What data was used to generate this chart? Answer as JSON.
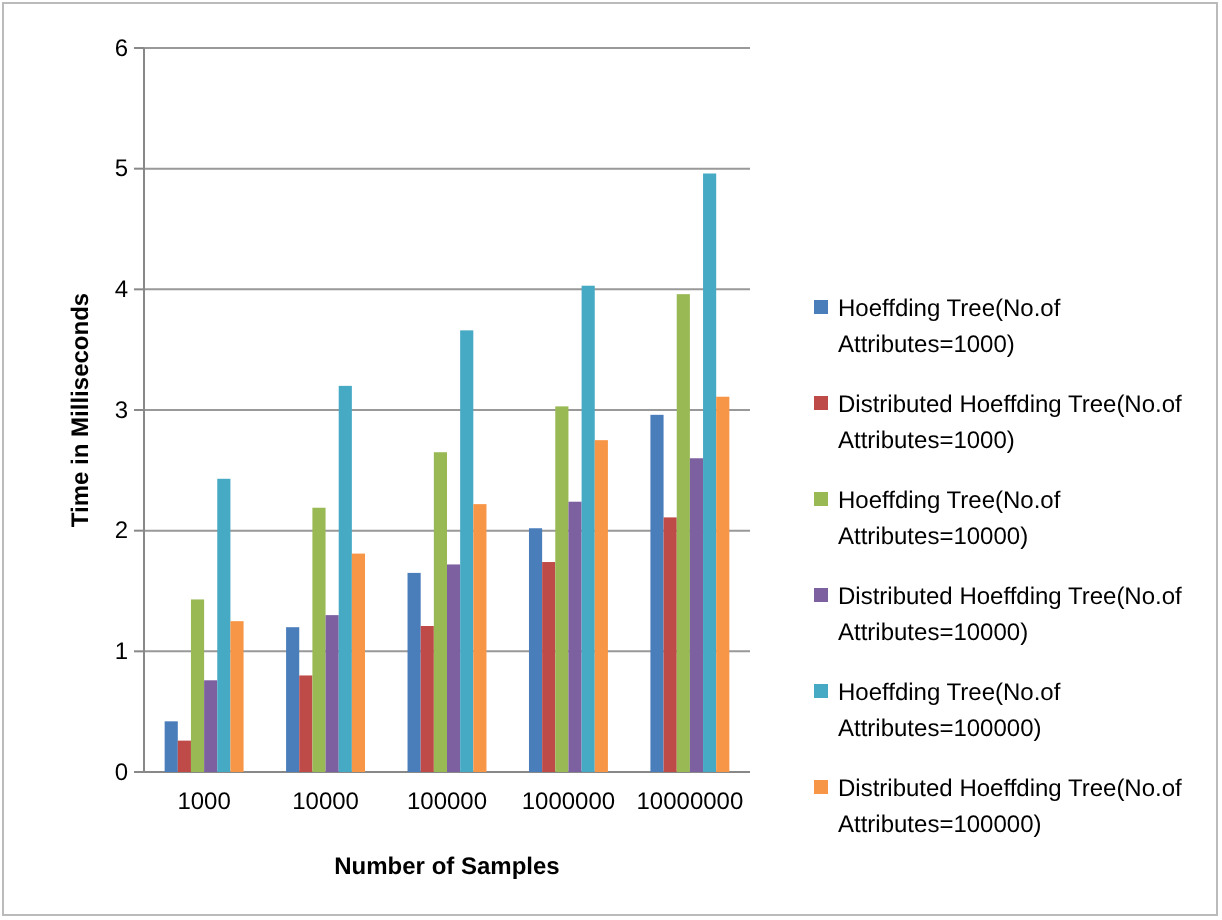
{
  "chart_data": {
    "type": "bar",
    "xlabel": "Number of Samples",
    "ylabel": "Time in Milliseconds",
    "categories": [
      "1000",
      "10000",
      "100000",
      "1000000",
      "10000000"
    ],
    "series": [
      {
        "name": "Hoeffding Tree(No.of Attributes=1000)",
        "color": "#4a7ebb",
        "values": [
          0.42,
          1.2,
          1.65,
          2.02,
          2.96
        ]
      },
      {
        "name": "Distributed Hoeffding Tree(No.of Attributes=1000)",
        "color": "#be4b48",
        "values": [
          0.26,
          0.8,
          1.21,
          1.74,
          2.11
        ]
      },
      {
        "name": "Hoeffding Tree(No.of Attributes=10000)",
        "color": "#98b954",
        "values": [
          1.43,
          2.19,
          2.65,
          3.03,
          3.96
        ]
      },
      {
        "name": "Distributed Hoeffding Tree(No.of Attributes=10000)",
        "color": "#7d60a0",
        "values": [
          0.76,
          1.3,
          1.72,
          2.24,
          2.6
        ]
      },
      {
        "name": "Hoeffding Tree(No.of Attributes=100000)",
        "color": "#46aac5",
        "values": [
          2.43,
          3.2,
          3.66,
          4.03,
          4.96
        ]
      },
      {
        "name": "Distributed Hoeffding Tree(No.of Attributes=100000)",
        "color": "#f79646",
        "values": [
          1.25,
          1.81,
          2.22,
          2.75,
          3.11
        ]
      }
    ],
    "ylim": [
      0,
      6
    ],
    "yticks": [
      0,
      1,
      2,
      3,
      4,
      5,
      6
    ],
    "grid": "y",
    "legend": "right"
  }
}
